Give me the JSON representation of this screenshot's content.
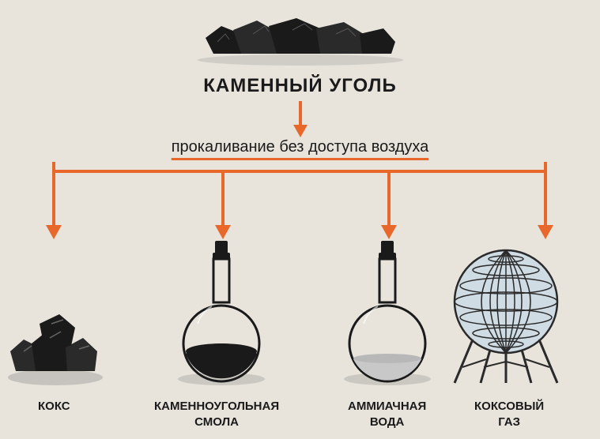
{
  "title": "КАМЕННЫЙ УГОЛЬ",
  "process": "прокаливание без доступа воздуха",
  "products": [
    {
      "label": "КОКС"
    },
    {
      "label": "КАМЕННОУГОЛЬНАЯ\nСМОЛА"
    },
    {
      "label": "АММИАЧНАЯ\nВОДА"
    },
    {
      "label": "КОКСОВЫЙ\nГАЗ"
    }
  ],
  "colors": {
    "arrow": "#e8682c",
    "text": "#1a1a1a",
    "background": "#e8e4dc",
    "coal": "#2a2a2a",
    "sphere_fill": "#c8d8e0",
    "sphere_stroke": "#3a3a3a",
    "flask_liquid_dark": "#1a1a1a",
    "flask_liquid_light": "#d0d0d0"
  },
  "layout": {
    "arrow_stroke_width": 4,
    "branch_positions_x": [
      68,
      282,
      492,
      690
    ],
    "product_positions_x": [
      20,
      188,
      400,
      560
    ],
    "label_positions_x": [
      58,
      200,
      430,
      610
    ]
  }
}
